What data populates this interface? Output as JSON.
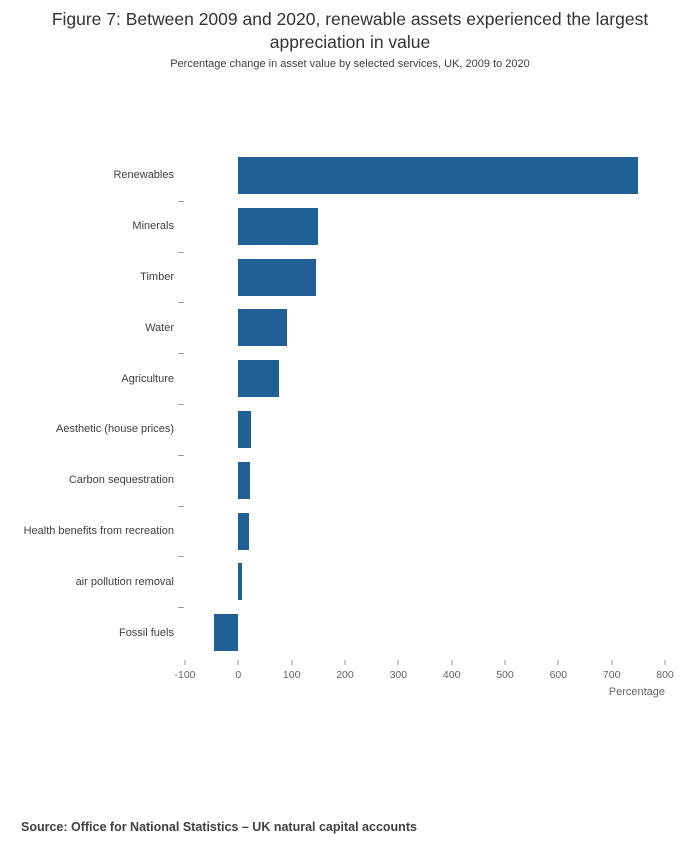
{
  "header": {
    "title": "Figure 7: Between 2009 and 2020, renewable assets experienced the largest appreciation in value",
    "subtitle": "Percentage change in asset value by selected services, UK, 2009 to 2020"
  },
  "chart_data": {
    "type": "bar",
    "orientation": "horizontal",
    "title": "Figure 7: Between 2009 and 2020, renewable assets experienced the largest appreciation in value",
    "subtitle": "Percentage change in asset value by selected services, UK, 2009 to 2020",
    "categories": [
      "Renewables",
      "Minerals",
      "Timber",
      "Water",
      "Agriculture",
      "Aesthetic (house prices)",
      "Carbon sequestration",
      "Health benefits from recreation",
      "air pollution removal",
      "Fossil fuels"
    ],
    "values": [
      750,
      150,
      146,
      91,
      76,
      23,
      21,
      20,
      6,
      -45
    ],
    "xlabel": "Percentage",
    "ylabel": "",
    "xlim": [
      -100,
      800
    ],
    "xticks": [
      -100,
      0,
      100,
      200,
      300,
      400,
      500,
      600,
      700,
      800
    ],
    "bar_color": "#206095",
    "grid": false,
    "legend": false
  },
  "footer": {
    "source": "Source: Office for National Statistics – UK natural capital accounts"
  }
}
